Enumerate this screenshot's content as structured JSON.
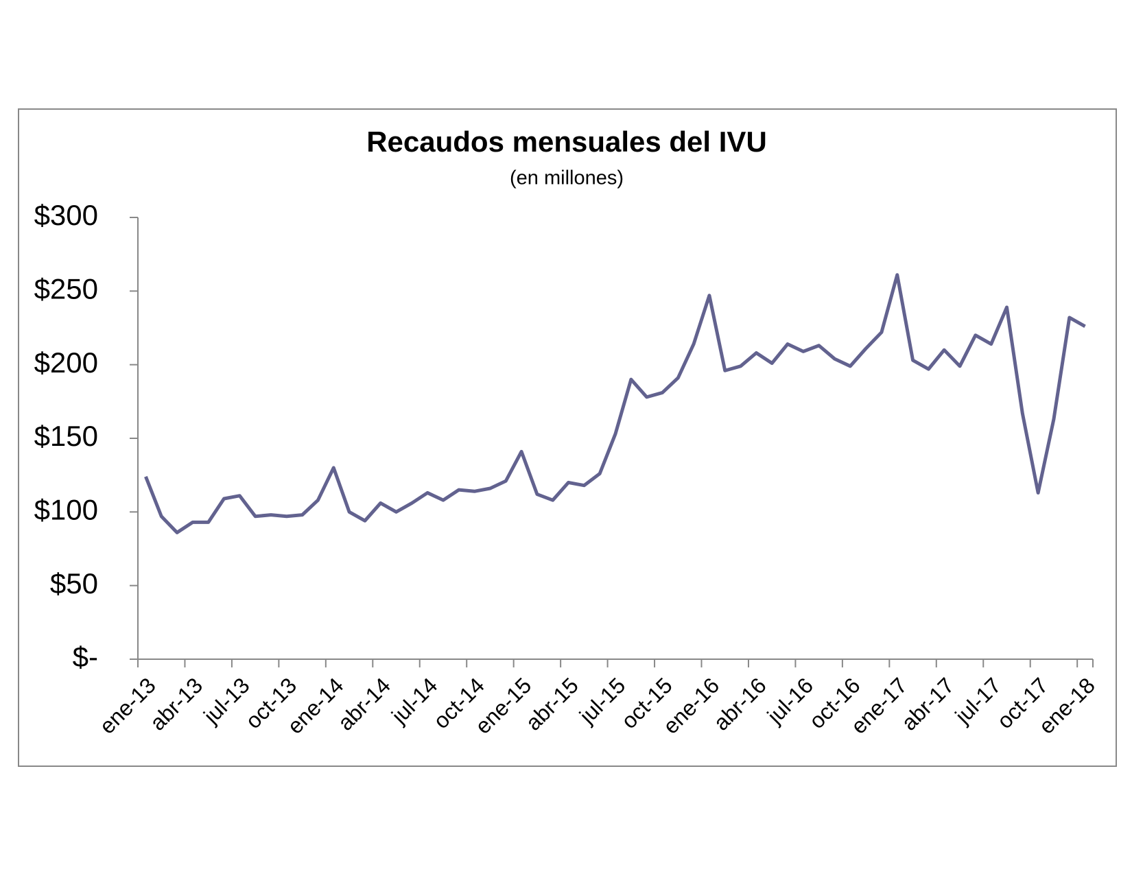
{
  "chart_data": {
    "type": "line",
    "title": "Recaudos mensuales del IVU",
    "subtitle": "(en millones)",
    "categories": [
      "ene-13",
      null,
      null,
      "abr-13",
      null,
      null,
      "jul-13",
      null,
      null,
      "oct-13",
      null,
      null,
      "ene-14",
      null,
      null,
      "abr-14",
      null,
      null,
      "jul-14",
      null,
      null,
      "oct-14",
      null,
      null,
      "ene-15",
      null,
      null,
      "abr-15",
      null,
      null,
      "jul-15",
      null,
      null,
      "oct-15",
      null,
      null,
      "ene-16",
      null,
      null,
      "abr-16",
      null,
      null,
      "jul-16",
      null,
      null,
      "oct-16",
      null,
      null,
      "ene-17",
      null,
      null,
      "abr-17",
      null,
      null,
      "jul-17",
      null,
      null,
      "oct-17",
      null,
      null,
      "ene-18"
    ],
    "series": [
      {
        "color": "#62628f",
        "values": [
          124,
          97,
          86,
          93,
          93,
          109,
          111,
          97,
          98,
          97,
          98,
          108,
          130,
          100,
          94,
          106,
          100,
          106,
          113,
          108,
          115,
          114,
          116,
          121,
          141,
          112,
          108,
          120,
          118,
          126,
          153,
          190,
          178,
          181,
          191,
          214,
          247,
          196,
          199,
          208,
          201,
          214,
          209,
          213,
          204,
          199,
          211,
          222,
          261,
          203,
          197,
          210,
          199,
          220,
          214,
          239,
          167,
          113,
          163,
          232,
          226
        ]
      }
    ],
    "ylim": [
      0,
      300
    ],
    "yticks": [
      {
        "value": 0,
        "label": "$-"
      },
      {
        "value": 50,
        "label": "$50"
      },
      {
        "value": 100,
        "label": "$100"
      },
      {
        "value": 150,
        "label": "$150"
      },
      {
        "value": 200,
        "label": "$200"
      },
      {
        "value": 250,
        "label": "$250"
      },
      {
        "value": 300,
        "label": "$300"
      }
    ],
    "grid": false
  }
}
